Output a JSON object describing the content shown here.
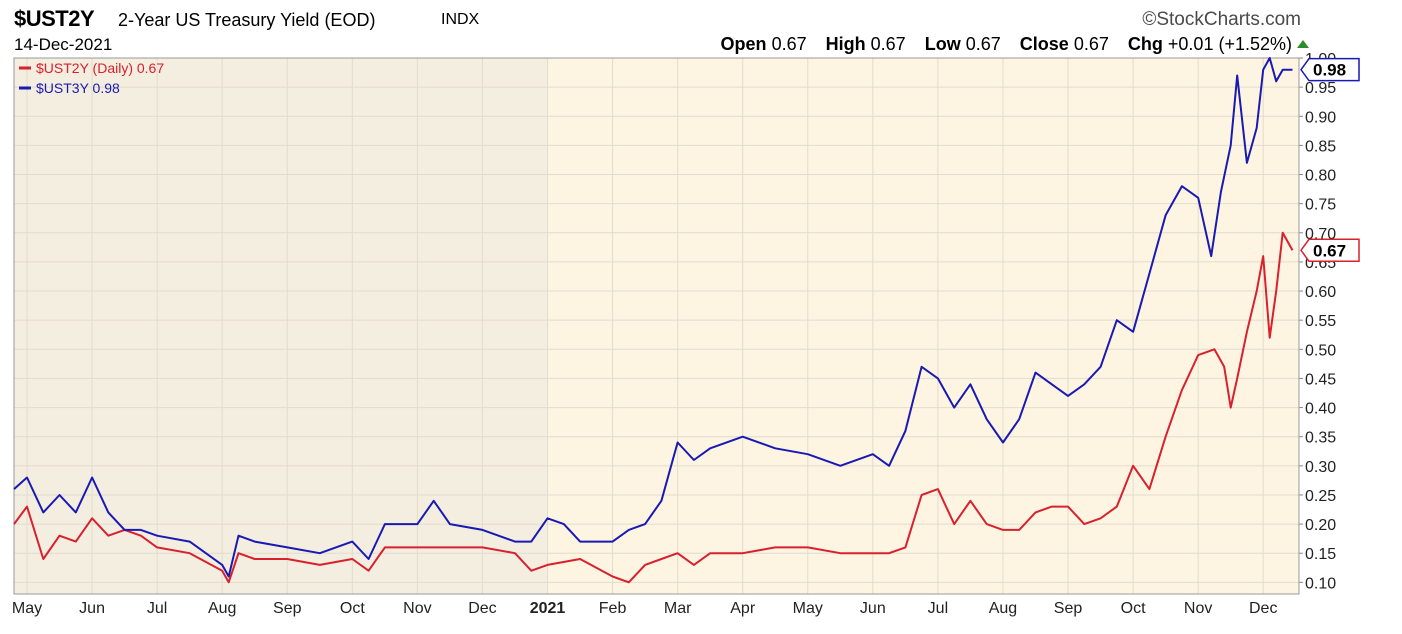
{
  "header": {
    "symbol": "$UST2Y",
    "description": "2-Year US Treasury Yield (EOD)",
    "exchange": "INDX",
    "date": "14-Dec-2021",
    "brand": "©StockCharts.com",
    "open_label": "Open",
    "open": "0.67",
    "high_label": "High",
    "high": "0.67",
    "low_label": "Low",
    "low": "0.67",
    "close_label": "Close",
    "close": "0.67",
    "chg_label": "Chg",
    "chg": "+0.01 (+1.52%)"
  },
  "colors": {
    "ust2y": "#d9202e",
    "ust3y": "#1919b4",
    "bg_early": "#f4eee0",
    "bg_late": "#fdf5e2",
    "grid": "#e2dccd",
    "up_arrow": "#2e8b2e"
  },
  "chart_data": {
    "type": "line",
    "title": "$UST2Y 2-Year US Treasury Yield (EOD)",
    "ylim": [
      0.08,
      1.0
    ],
    "y_ticks": [
      "0.10",
      "0.15",
      "0.20",
      "0.25",
      "0.30",
      "0.35",
      "0.40",
      "0.45",
      "0.50",
      "0.55",
      "0.60",
      "0.65",
      "0.70",
      "0.75",
      "0.80",
      "0.85",
      "0.90",
      "0.95",
      "1.00"
    ],
    "x_ticks": [
      "May",
      "Jun",
      "Jul",
      "Aug",
      "Sep",
      "Oct",
      "Nov",
      "Dec",
      "2021",
      "Feb",
      "Mar",
      "Apr",
      "May",
      "Jun",
      "Jul",
      "Aug",
      "Sep",
      "Oct",
      "Nov",
      "Dec"
    ],
    "x_tick_months": [
      0,
      1,
      2,
      3,
      4,
      5,
      6,
      7,
      8,
      9,
      10,
      11,
      12,
      13,
      14,
      15,
      16,
      17,
      18,
      19
    ],
    "x_range_months": [
      -0.2,
      19.55
    ],
    "shaded_until_month": 8,
    "grid": true,
    "legend_position": "top-left",
    "series": [
      {
        "name": "$UST2Y (Daily) 0.67",
        "last_label": "0.67",
        "x": [
          -0.2,
          0.0,
          0.25,
          0.5,
          0.75,
          1.0,
          1.25,
          1.5,
          1.75,
          2.0,
          2.5,
          3.0,
          3.1,
          3.25,
          3.5,
          4.0,
          4.5,
          5.0,
          5.25,
          5.5,
          6.0,
          6.5,
          7.0,
          7.5,
          7.75,
          8.0,
          8.5,
          9.0,
          9.25,
          9.5,
          9.75,
          10.0,
          10.25,
          10.5,
          11.0,
          11.5,
          12.0,
          12.5,
          13.0,
          13.25,
          13.5,
          13.75,
          14.0,
          14.25,
          14.5,
          14.75,
          15.0,
          15.25,
          15.5,
          15.75,
          16.0,
          16.25,
          16.5,
          16.75,
          17.0,
          17.25,
          17.5,
          17.75,
          18.0,
          18.25,
          18.4,
          18.5,
          18.6,
          18.75,
          18.9,
          19.0,
          19.1,
          19.2,
          19.3,
          19.45
        ],
        "y": [
          0.2,
          0.23,
          0.14,
          0.18,
          0.17,
          0.21,
          0.18,
          0.19,
          0.18,
          0.16,
          0.15,
          0.12,
          0.1,
          0.15,
          0.14,
          0.14,
          0.13,
          0.14,
          0.12,
          0.16,
          0.16,
          0.16,
          0.16,
          0.15,
          0.12,
          0.13,
          0.14,
          0.11,
          0.1,
          0.13,
          0.14,
          0.15,
          0.13,
          0.15,
          0.15,
          0.16,
          0.16,
          0.15,
          0.15,
          0.15,
          0.16,
          0.25,
          0.26,
          0.2,
          0.24,
          0.2,
          0.19,
          0.19,
          0.22,
          0.23,
          0.23,
          0.2,
          0.21,
          0.23,
          0.3,
          0.26,
          0.35,
          0.43,
          0.49,
          0.5,
          0.47,
          0.4,
          0.45,
          0.53,
          0.6,
          0.66,
          0.52,
          0.6,
          0.7,
          0.67
        ]
      },
      {
        "name": "$UST3Y 0.98",
        "last_label": "0.98",
        "x": [
          -0.2,
          0.0,
          0.25,
          0.5,
          0.75,
          1.0,
          1.25,
          1.5,
          1.75,
          2.0,
          2.5,
          3.0,
          3.1,
          3.25,
          3.5,
          4.0,
          4.5,
          5.0,
          5.25,
          5.5,
          6.0,
          6.25,
          6.5,
          7.0,
          7.5,
          7.75,
          8.0,
          8.25,
          8.5,
          9.0,
          9.25,
          9.5,
          9.75,
          10.0,
          10.25,
          10.5,
          11.0,
          11.5,
          12.0,
          12.5,
          13.0,
          13.25,
          13.5,
          13.75,
          14.0,
          14.25,
          14.5,
          14.75,
          15.0,
          15.25,
          15.5,
          15.75,
          16.0,
          16.25,
          16.5,
          16.75,
          17.0,
          17.25,
          17.5,
          17.75,
          18.0,
          18.2,
          18.35,
          18.5,
          18.6,
          18.75,
          18.9,
          19.0,
          19.1,
          19.2,
          19.3,
          19.45
        ],
        "y": [
          0.26,
          0.28,
          0.22,
          0.25,
          0.22,
          0.28,
          0.22,
          0.19,
          0.19,
          0.18,
          0.17,
          0.13,
          0.11,
          0.18,
          0.17,
          0.16,
          0.15,
          0.17,
          0.14,
          0.2,
          0.2,
          0.24,
          0.2,
          0.19,
          0.17,
          0.17,
          0.21,
          0.2,
          0.17,
          0.17,
          0.19,
          0.2,
          0.24,
          0.34,
          0.31,
          0.33,
          0.35,
          0.33,
          0.32,
          0.3,
          0.32,
          0.3,
          0.36,
          0.47,
          0.45,
          0.4,
          0.44,
          0.38,
          0.34,
          0.38,
          0.46,
          0.44,
          0.42,
          0.44,
          0.47,
          0.55,
          0.53,
          0.63,
          0.73,
          0.78,
          0.76,
          0.66,
          0.77,
          0.85,
          0.97,
          0.82,
          0.88,
          0.98,
          1.0,
          0.96,
          0.98,
          0.98
        ]
      }
    ]
  }
}
